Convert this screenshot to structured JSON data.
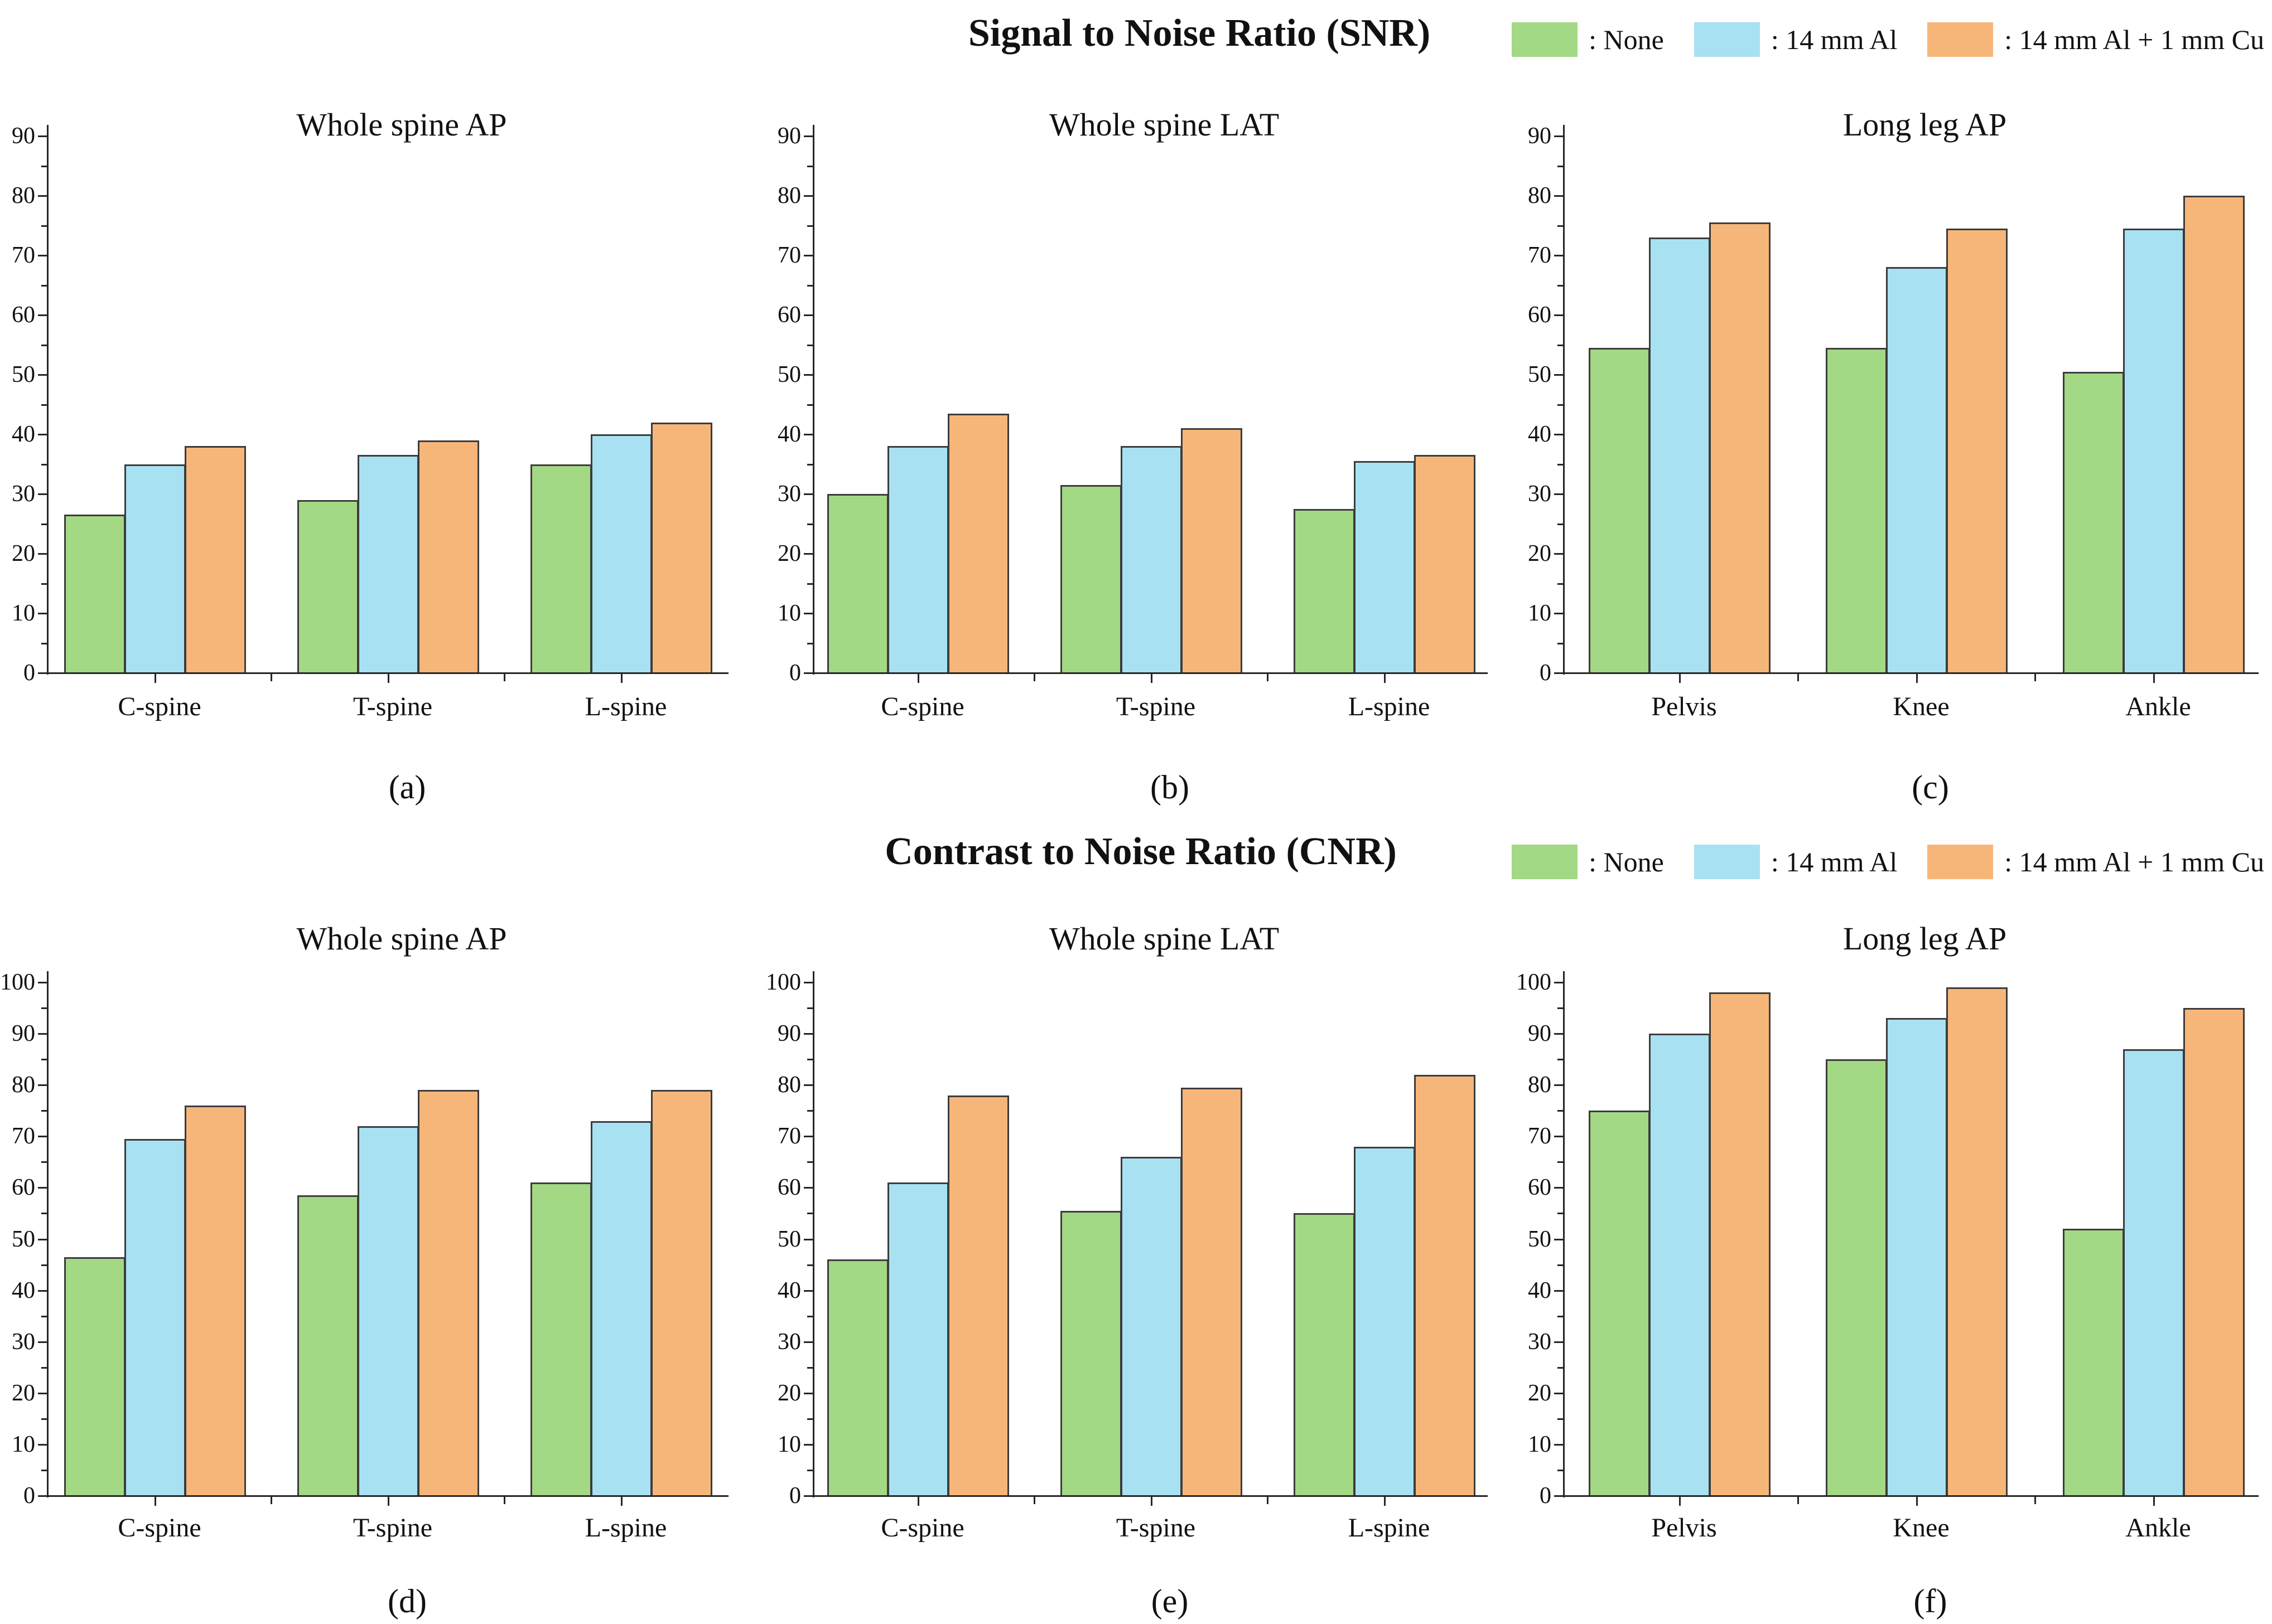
{
  "page": {
    "background": "#ffffff"
  },
  "colors": {
    "series": [
      "#a3d884",
      "#a8e2f2",
      "#f7b679"
    ],
    "bar_border": "#3c3c3c",
    "axis": "#262626",
    "text": "#111111"
  },
  "legend": {
    "position": "top-right",
    "items": [
      {
        "label": ": None",
        "series": "None"
      },
      {
        "label": ": 14 mm Al",
        "series": "14 mm Al"
      },
      {
        "label": ": 14 mm Al + 1 mm Cu",
        "series": "14 mm Al + 1 mm Cu"
      }
    ]
  },
  "sections": [
    {
      "id": "snr",
      "title": "Signal to Noise Ratio (SNR)",
      "charts": [
        "a",
        "b",
        "c"
      ]
    },
    {
      "id": "cnr",
      "title": "Contrast to Noise Ratio (CNR)",
      "charts": [
        "d",
        "e",
        "f"
      ]
    }
  ],
  "chart_data": [
    {
      "id": "a",
      "type": "bar",
      "section": "Signal to Noise Ratio (SNR)",
      "title": "Whole spine AP",
      "caption": "(a)",
      "categories": [
        "C-spine",
        "T-spine",
        "L-spine"
      ],
      "ymin": 0,
      "ymax": 90,
      "ytick_step": 10,
      "minor_tick_step": 5,
      "grid": false,
      "series": [
        {
          "name": "None",
          "values": [
            26.5,
            29,
            35
          ]
        },
        {
          "name": "14 mm Al",
          "values": [
            35,
            36.5,
            40
          ]
        },
        {
          "name": "14 mm Al + 1 mm Cu",
          "values": [
            38,
            39,
            42
          ]
        }
      ]
    },
    {
      "id": "b",
      "type": "bar",
      "section": "Signal to Noise Ratio (SNR)",
      "title": "Whole spine LAT",
      "caption": "(b)",
      "categories": [
        "C-spine",
        "T-spine",
        "L-spine"
      ],
      "ymin": 0,
      "ymax": 90,
      "ytick_step": 10,
      "minor_tick_step": 5,
      "grid": false,
      "series": [
        {
          "name": "None",
          "values": [
            30,
            31.5,
            27.5
          ]
        },
        {
          "name": "14 mm Al",
          "values": [
            38,
            38,
            35.5
          ]
        },
        {
          "name": "14 mm Al + 1 mm Cu",
          "values": [
            43.5,
            41,
            36.5
          ]
        }
      ]
    },
    {
      "id": "c",
      "type": "bar",
      "section": "Signal to Noise Ratio (SNR)",
      "title": "Long leg AP",
      "caption": "(c)",
      "categories": [
        "Pelvis",
        "Knee",
        "Ankle"
      ],
      "ymin": 0,
      "ymax": 90,
      "ytick_step": 10,
      "minor_tick_step": 5,
      "grid": false,
      "series": [
        {
          "name": "None",
          "values": [
            54.5,
            54.5,
            50.5
          ]
        },
        {
          "name": "14 mm Al",
          "values": [
            73,
            68,
            74.5
          ]
        },
        {
          "name": "14 mm Al + 1 mm Cu",
          "values": [
            75.5,
            74.5,
            80
          ]
        }
      ]
    },
    {
      "id": "d",
      "type": "bar",
      "section": "Contrast to Noise Ratio (CNR)",
      "title": "Whole spine AP",
      "caption": "(d)",
      "categories": [
        "C-spine",
        "T-spine",
        "L-spine"
      ],
      "ymin": 0,
      "ymax": 100,
      "ytick_step": 10,
      "minor_tick_step": 5,
      "grid": false,
      "series": [
        {
          "name": "None",
          "values": [
            46.5,
            58.5,
            61
          ]
        },
        {
          "name": "14 mm Al",
          "values": [
            69.5,
            72,
            73
          ]
        },
        {
          "name": "14 mm Al + 1 mm Cu",
          "values": [
            76,
            79,
            79
          ]
        }
      ]
    },
    {
      "id": "e",
      "type": "bar",
      "section": "Contrast to Noise Ratio (CNR)",
      "title": "Whole spine LAT",
      "caption": "(e)",
      "categories": [
        "C-spine",
        "T-spine",
        "L-spine"
      ],
      "ymin": 0,
      "ymax": 100,
      "ytick_step": 10,
      "minor_tick_step": 5,
      "grid": false,
      "series": [
        {
          "name": "None",
          "values": [
            46,
            55.5,
            55
          ]
        },
        {
          "name": "14 mm Al",
          "values": [
            61,
            66,
            68
          ]
        },
        {
          "name": "14 mm Al + 1 mm Cu",
          "values": [
            78,
            79.5,
            82
          ]
        }
      ]
    },
    {
      "id": "f",
      "type": "bar",
      "section": "Contrast to Noise Ratio (CNR)",
      "title": "Long leg AP",
      "caption": "(f)",
      "categories": [
        "Pelvis",
        "Knee",
        "Ankle"
      ],
      "ymin": 0,
      "ymax": 100,
      "ytick_step": 10,
      "minor_tick_step": 5,
      "grid": false,
      "series": [
        {
          "name": "None",
          "values": [
            75,
            85,
            52
          ]
        },
        {
          "name": "14 mm Al",
          "values": [
            90,
            93,
            87
          ]
        },
        {
          "name": "14 mm Al + 1 mm Cu",
          "values": [
            98,
            99,
            95
          ]
        }
      ]
    }
  ]
}
